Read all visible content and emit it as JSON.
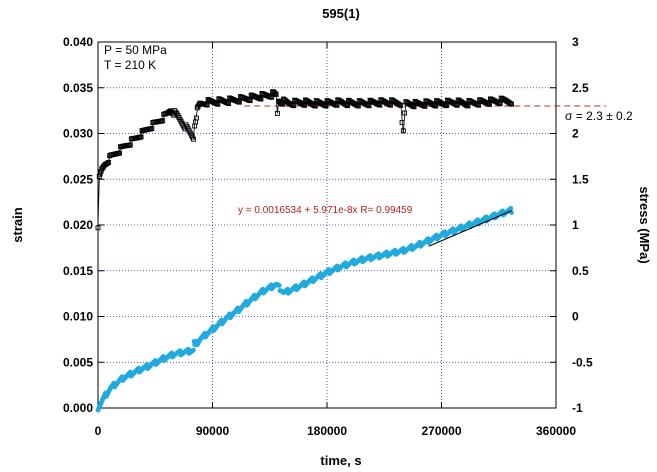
{
  "chart_data": {
    "type": "scatter",
    "title": "595(1)",
    "xlabel": "time, s",
    "ylabel": "strain",
    "y2label": "stress (MPa)",
    "xlim": [
      0,
      360000
    ],
    "ylim": [
      0,
      0.04
    ],
    "y2lim": [
      -1,
      3
    ],
    "x_ticks": [
      "0",
      "90000",
      "180000",
      "270000",
      "360000"
    ],
    "y_ticks": [
      "0.000",
      "0.005",
      "0.010",
      "0.015",
      "0.020",
      "0.025",
      "0.030",
      "0.035",
      "0.040"
    ],
    "y2_ticks": [
      "-1",
      "-0.5",
      "0",
      "0.5",
      "1",
      "1.5",
      "2",
      "2.5",
      "3"
    ],
    "grid": true,
    "annotations": {
      "pressure": "P = 50 MPa",
      "temperature": "T = 210 K",
      "sigma": "σ = 2.3 ± 0.2",
      "fit": "y = 0.0016534 + 5.971e-8x   R= 0.99459"
    },
    "mean_stress": 2.3,
    "series": [
      {
        "axis": "right",
        "color": "#000000",
        "marker": "open-square",
        "x": [
          0,
          1000,
          3000,
          5000,
          10000,
          20000,
          30000,
          40000,
          50000,
          55000,
          57000,
          62000,
          70000,
          75000,
          76000,
          78000,
          80000,
          85000,
          95000,
          105000,
          115000,
          125000,
          135000,
          138000,
          140000,
          141000,
          142000,
          145000,
          150000,
          160000,
          170000,
          180000,
          190000,
          200000,
          210000,
          220000,
          230000,
          238000,
          239000,
          240000,
          241000,
          242000,
          250000,
          260000,
          270000,
          280000,
          290000,
          300000,
          310000,
          320000,
          325000
        ],
        "y": [
          1.0,
          1.5,
          1.6,
          1.66,
          1.74,
          1.85,
          1.95,
          2.06,
          2.16,
          2.22,
          2.26,
          2.2,
          2.05,
          1.95,
          2.1,
          2.25,
          2.32,
          2.34,
          2.35,
          2.36,
          2.38,
          2.4,
          2.42,
          2.43,
          2.42,
          2.22,
          2.36,
          2.35,
          2.33,
          2.34,
          2.33,
          2.33,
          2.34,
          2.33,
          2.33,
          2.34,
          2.34,
          2.33,
          2.15,
          2.0,
          2.2,
          2.33,
          2.32,
          2.33,
          2.33,
          2.34,
          2.33,
          2.34,
          2.35,
          2.36,
          2.35
        ]
      },
      {
        "axis": "left",
        "color": "#22aadd",
        "marker": "dot",
        "x": [
          0,
          5000,
          10000,
          20000,
          30000,
          40000,
          50000,
          55000,
          60000,
          75000,
          75500,
          76000,
          80000,
          90000,
          100000,
          110000,
          120000,
          130000,
          140000,
          145000,
          146000,
          150000,
          160000,
          170000,
          180000,
          190000,
          200000,
          210000,
          220000,
          230000,
          240000,
          250000,
          260000,
          270000,
          280000,
          290000,
          300000,
          310000,
          320000,
          325000
        ],
        "y": [
          0.0,
          0.0012,
          0.0022,
          0.0033,
          0.004,
          0.0046,
          0.0053,
          0.0056,
          0.0059,
          0.0063,
          0.0072,
          0.0068,
          0.0075,
          0.0086,
          0.0097,
          0.0107,
          0.0118,
          0.0128,
          0.0135,
          0.0128,
          0.0126,
          0.0128,
          0.0134,
          0.0141,
          0.0148,
          0.0154,
          0.0159,
          0.0163,
          0.0166,
          0.0169,
          0.0172,
          0.0177,
          0.0183,
          0.0189,
          0.0194,
          0.0199,
          0.0204,
          0.0209,
          0.0214,
          0.0216
        ]
      }
    ],
    "fit_line": {
      "x": [
        260000,
        325000
      ],
      "slope": 5.971e-08,
      "intercept": 0.0016534
    }
  }
}
